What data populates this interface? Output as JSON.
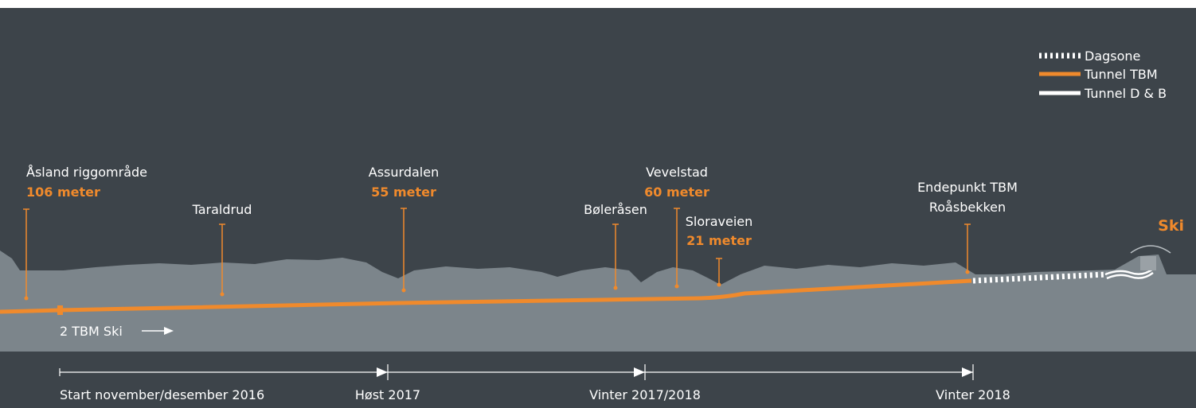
{
  "legend": [
    {
      "label": "Dagsone"
    },
    {
      "label": "Tunnel TBM"
    },
    {
      "label": "Tunnel D & B"
    }
  ],
  "locations": [
    {
      "name": "Åsland riggområde",
      "depth": "106 meter"
    },
    {
      "name": "Taraldrud"
    },
    {
      "name": "Assurdalen",
      "depth": "55 meter"
    },
    {
      "name": "Bøleråsen"
    },
    {
      "name": "Vevelstad",
      "depth": "60 meter"
    },
    {
      "name": "Sloraveien",
      "depth": "21 meter"
    },
    {
      "name": "Endepunkt TBM",
      "subname": "Roåsbekken"
    }
  ],
  "destination": "Ski",
  "direction_label": "2 TBM Ski",
  "timeline": [
    "Start november/desember 2016",
    "Høst 2017",
    "Vinter 2017/2018",
    "Vinter 2018"
  ]
}
